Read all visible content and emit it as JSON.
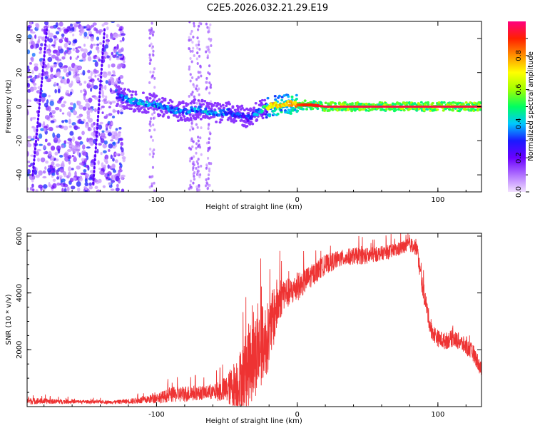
{
  "title": "C2E5.2026.032.21.29.E19",
  "chart_data": [
    {
      "type": "heatmap",
      "name": "spectrogram",
      "xlabel": "Height of straight line (km)",
      "ylabel": "Frequency (Hz)",
      "xlim": [
        -192,
        131
      ],
      "ylim": [
        -50,
        50
      ],
      "xticks": [
        "-100",
        "0",
        "100"
      ],
      "xtick_values": [
        -100,
        0,
        100
      ],
      "yticks": [
        "-40",
        "-20",
        "0",
        "20",
        "40"
      ],
      "ytick_values": [
        -40,
        -20,
        0,
        20,
        40
      ],
      "colorbar": {
        "label": "Normalized spectral amplitude",
        "range": [
          0,
          1
        ],
        "ticks": [
          "0.0",
          "0.2",
          "0.4",
          "0.6",
          "0.8"
        ],
        "tick_values": [
          0,
          0.2,
          0.4,
          0.6,
          0.8
        ],
        "colors": [
          "#f2e0ff",
          "#b070ff",
          "#6a00ff",
          "#1a1aff",
          "#00c8ff",
          "#00ff60",
          "#a0ff00",
          "#ffff00",
          "#ff9000",
          "#ff2000",
          "#ff0080"
        ]
      },
      "ridge": {
        "x": [
          -128,
          -115,
          -100,
          -90,
          -80,
          -70,
          -60,
          -50,
          -40,
          -35,
          -30,
          -25,
          -20,
          -15,
          -10,
          -5,
          0,
          5,
          10,
          20,
          40,
          60,
          80,
          100,
          131
        ],
        "freq": [
          6,
          3,
          1,
          -2,
          -3,
          -1,
          -4,
          -3,
          -5,
          -7,
          -4,
          -2,
          0,
          1,
          1,
          2,
          1,
          1,
          1,
          0,
          0,
          0,
          0,
          0,
          0
        ],
        "amplitude": [
          0.35,
          0.45,
          0.45,
          0.4,
          0.4,
          0.45,
          0.45,
          0.4,
          0.35,
          0.35,
          0.4,
          0.5,
          0.75,
          0.8,
          0.8,
          0.85,
          0.85,
          0.9,
          0.9,
          0.95,
          0.95,
          0.95,
          0.95,
          0.95,
          0.95
        ]
      },
      "noise_region_x": [
        -192,
        -128
      ],
      "faint_streaks_x": [
        -103,
        -75,
        -70,
        -63
      ]
    },
    {
      "type": "line",
      "name": "snr",
      "xlabel": "Height of straight line (km)",
      "ylabel": "SNR (10 * v/v)",
      "xlim": [
        -192,
        131
      ],
      "ylim": [
        0,
        6100
      ],
      "xticks": [
        "-100",
        "0",
        "100"
      ],
      "xtick_values": [
        -100,
        0,
        100
      ],
      "yticks": [
        "2000",
        "4000",
        "6000"
      ],
      "ytick_values": [
        2000,
        4000,
        6000
      ],
      "color": "#ee3333",
      "envelope": {
        "x": [
          -192,
          -170,
          -150,
          -130,
          -110,
          -100,
          -90,
          -80,
          -70,
          -60,
          -50,
          -40,
          -35,
          -30,
          -25,
          -20,
          -15,
          -10,
          -5,
          0,
          10,
          20,
          30,
          40,
          50,
          60,
          70,
          80,
          85,
          88,
          92,
          95,
          100,
          105,
          110,
          115,
          120,
          125,
          131
        ],
        "base": [
          200,
          180,
          170,
          160,
          220,
          300,
          400,
          450,
          480,
          500,
          600,
          900,
          1400,
          1800,
          2200,
          2500,
          3500,
          4000,
          4000,
          4200,
          4600,
          5000,
          5200,
          5300,
          5300,
          5400,
          5500,
          5700,
          5600,
          4500,
          3500,
          2700,
          2400,
          2300,
          2400,
          2300,
          2100,
          1900,
          1300
        ],
        "amp": [
          120,
          80,
          60,
          60,
          120,
          180,
          250,
          300,
          250,
          250,
          500,
          1200,
          1500,
          1500,
          1400,
          1200,
          1000,
          600,
          500,
          500,
          400,
          350,
          300,
          300,
          300,
          250,
          250,
          250,
          300,
          350,
          350,
          300,
          300,
          300,
          300,
          300,
          300,
          300,
          300
        ]
      }
    }
  ]
}
